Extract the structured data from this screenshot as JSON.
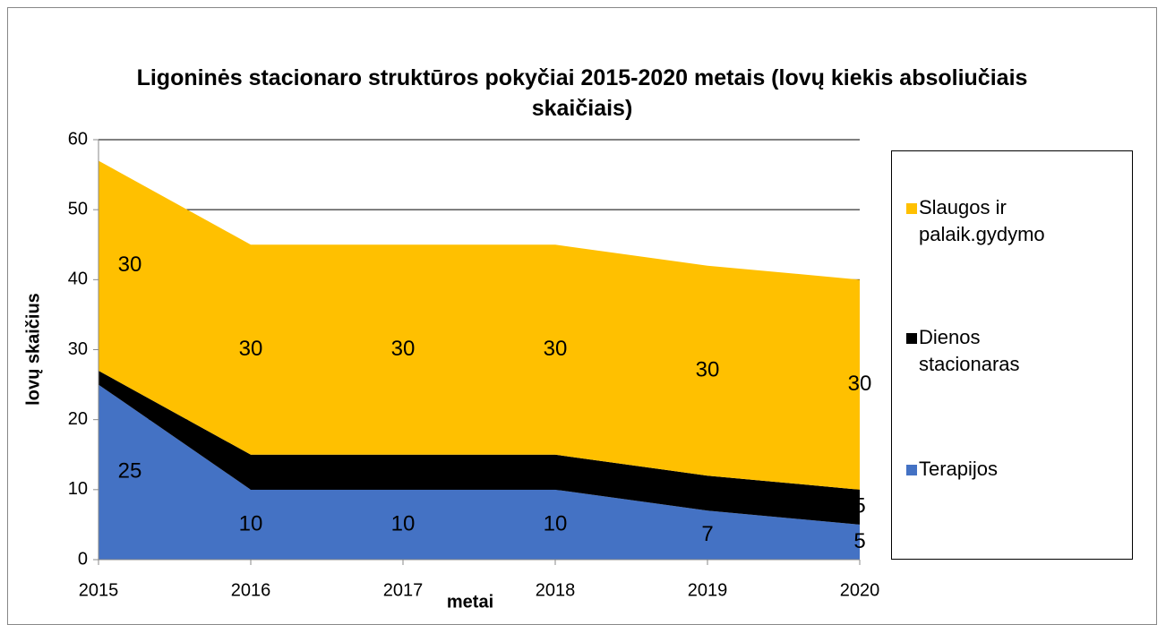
{
  "chart_data": {
    "type": "stacked_area",
    "title": "Ligoninės stacionaro struktūros pokyčiai 2015-2020 metais (lovų kiekis absoliučiais skaičiais)",
    "x_label": "metai",
    "y_label": "lovų skaičius",
    "categories": [
      "2015",
      "2016",
      "2017",
      "2018",
      "2019",
      "2020"
    ],
    "series": [
      {
        "name": "Terapijos",
        "color": "#4472c4",
        "values": [
          25,
          10,
          10,
          10,
          7,
          5
        ]
      },
      {
        "name": "Dienos stacionaras",
        "color": "#000000",
        "values": [
          2,
          5,
          5,
          5,
          5,
          5
        ]
      },
      {
        "name": "Slaugos ir palaik.gydymo",
        "color": "#ffc000",
        "values": [
          30,
          30,
          30,
          30,
          30,
          30
        ]
      }
    ],
    "ylim": [
      0,
      60
    ],
    "yticks": [
      0,
      10,
      20,
      30,
      40,
      50,
      60
    ],
    "grid": true,
    "legend": "right"
  }
}
